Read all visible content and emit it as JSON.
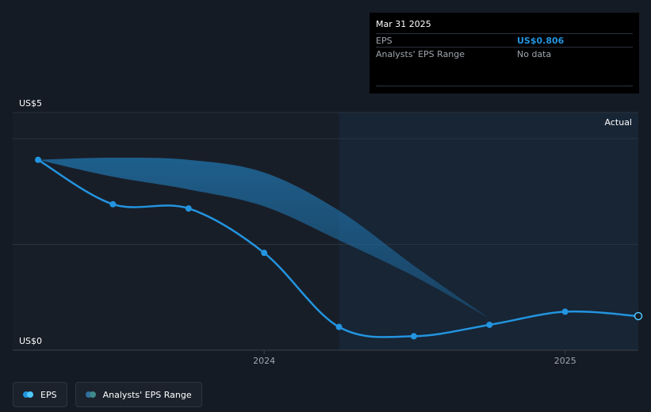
{
  "colors": {
    "background": "#151b24",
    "eps_line": "#2394df",
    "range_fill": "#2394df",
    "actual_region": "#172535",
    "grid": "#2b323c",
    "muted_text": "#a0a6ae"
  },
  "tooltip": {
    "date": "Mar 31 2025",
    "rows": [
      {
        "label": "EPS",
        "value": "US$0.806"
      },
      {
        "label": "Analysts' EPS Range",
        "value": "No data"
      }
    ]
  },
  "region_label": "Actual",
  "legend": [
    {
      "label": "EPS",
      "colors": [
        "#2394df",
        "#4ec9ff"
      ],
      "icon": "eps-dots-icon"
    },
    {
      "label": "Analysts' EPS Range",
      "colors": [
        "#2e6e9e",
        "#3f8a8a"
      ],
      "icon": "range-dots-icon"
    }
  ],
  "chart_data": {
    "type": "line",
    "y_tick_labels": [
      "US$5",
      "US$0"
    ],
    "ylim": [
      0,
      5
    ],
    "x_tick_labels": [
      "2024",
      "2025"
    ],
    "x_ticks": [
      "2024-01-01",
      "2025-01-01"
    ],
    "xlim": [
      "2023-04-01",
      "2025-03-31"
    ],
    "grid": true,
    "actual_region_start": "2024-04-01",
    "series": [
      {
        "name": "EPS",
        "x": [
          "2023-04-01",
          "2023-07-01",
          "2023-10-01",
          "2024-01-01",
          "2024-04-01",
          "2024-07-01",
          "2024-10-01",
          "2025-01-01",
          "2025-03-31"
        ],
        "y": [
          4.5,
          3.45,
          3.35,
          2.3,
          0.55,
          0.33,
          0.6,
          0.91,
          0.806
        ],
        "markers_visible": [
          true,
          true,
          true,
          true,
          true,
          true,
          true,
          true,
          true
        ]
      }
    ],
    "range": {
      "name": "Analysts' EPS Range",
      "x": [
        "2023-04-01",
        "2023-07-01",
        "2023-10-01",
        "2024-01-01",
        "2024-04-01",
        "2024-07-01",
        "2024-10-01"
      ],
      "low": [
        4.5,
        4.1,
        3.8,
        3.4,
        2.6,
        1.75,
        0.75
      ],
      "high": [
        4.5,
        4.55,
        4.5,
        4.2,
        3.3,
        2.0,
        0.75
      ]
    }
  }
}
